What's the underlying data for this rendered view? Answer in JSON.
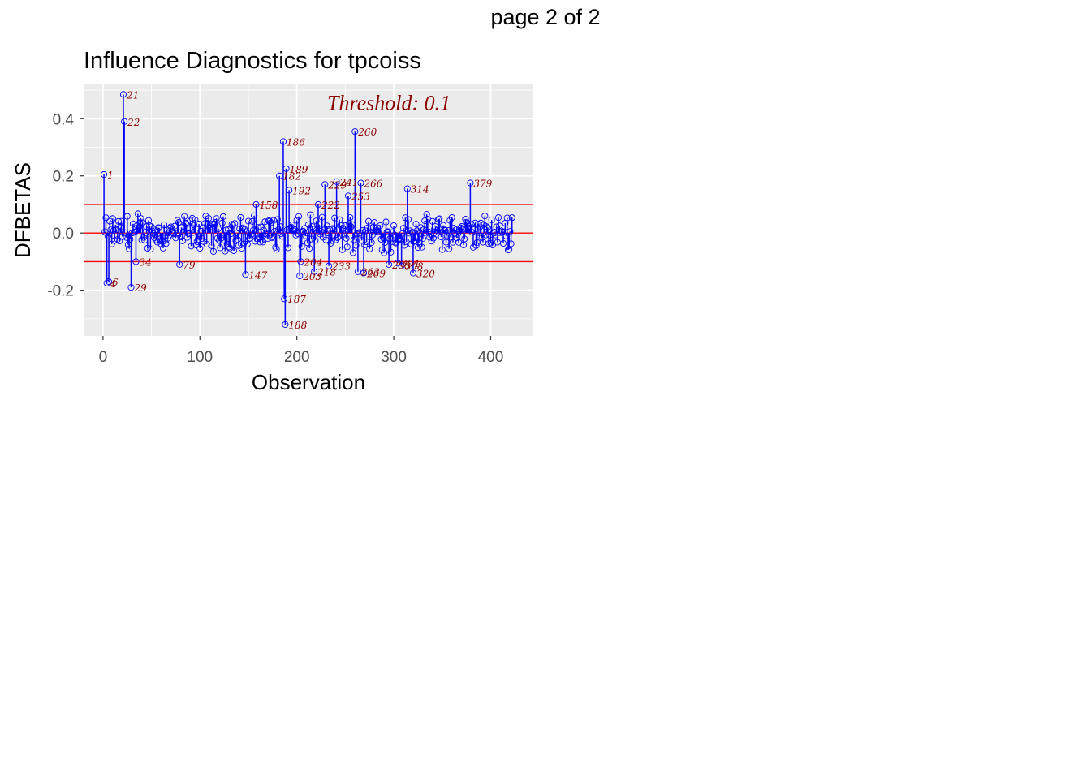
{
  "page_label": "page 2 of 2",
  "chart_data": {
    "type": "scatter",
    "title": "Influence Diagnostics for tpcoiss",
    "xlabel": "Observation",
    "ylabel": "DFBETAS",
    "xlim": [
      -20,
      444
    ],
    "ylim": [
      -0.36,
      0.52
    ],
    "x_ticks": [
      0,
      100,
      200,
      300,
      400
    ],
    "y_ticks": [
      -0.2,
      0.0,
      0.2,
      0.4
    ],
    "x_tick_labels": [
      "0",
      "100",
      "200",
      "300",
      "400"
    ],
    "y_tick_labels": [
      "-0.2",
      "0.0",
      "0.2",
      "0.4"
    ],
    "threshold": 0.1,
    "threshold_label": "Threshold: 0.1",
    "grid": true,
    "colors": {
      "panel": "#ebebeb",
      "grid": "#ffffff",
      "point": "#0000ff",
      "threshold_line": "#ff0000",
      "label": "#8b0000"
    },
    "n_observations": 422,
    "labeled_points": [
      {
        "x": 1,
        "y": 0.205,
        "label": "1"
      },
      {
        "x": 4,
        "y": -0.175,
        "label": "4"
      },
      {
        "x": 6,
        "y": -0.17,
        "label": "6"
      },
      {
        "x": 21,
        "y": 0.485,
        "label": "21"
      },
      {
        "x": 22,
        "y": 0.39,
        "label": "22"
      },
      {
        "x": 29,
        "y": -0.19,
        "label": "29"
      },
      {
        "x": 34,
        "y": -0.1,
        "label": "34"
      },
      {
        "x": 79,
        "y": -0.11,
        "label": "79"
      },
      {
        "x": 147,
        "y": -0.145,
        "label": "147"
      },
      {
        "x": 158,
        "y": 0.1,
        "label": "158"
      },
      {
        "x": 182,
        "y": 0.2,
        "label": "182"
      },
      {
        "x": 186,
        "y": 0.32,
        "label": "186"
      },
      {
        "x": 187,
        "y": -0.23,
        "label": "187"
      },
      {
        "x": 188,
        "y": -0.32,
        "label": "188"
      },
      {
        "x": 189,
        "y": 0.225,
        "label": "189"
      },
      {
        "x": 192,
        "y": 0.15,
        "label": "192"
      },
      {
        "x": 203,
        "y": -0.15,
        "label": "203"
      },
      {
        "x": 204,
        "y": -0.1,
        "label": "204"
      },
      {
        "x": 218,
        "y": -0.135,
        "label": "218"
      },
      {
        "x": 222,
        "y": 0.1,
        "label": "222"
      },
      {
        "x": 229,
        "y": 0.17,
        "label": "229"
      },
      {
        "x": 233,
        "y": -0.115,
        "label": "233"
      },
      {
        "x": 241,
        "y": 0.18,
        "label": "241"
      },
      {
        "x": 253,
        "y": 0.13,
        "label": "253"
      },
      {
        "x": 260,
        "y": 0.355,
        "label": "260"
      },
      {
        "x": 263,
        "y": -0.135,
        "label": "263"
      },
      {
        "x": 266,
        "y": 0.175,
        "label": "266"
      },
      {
        "x": 269,
        "y": -0.14,
        "label": "269"
      },
      {
        "x": 295,
        "y": -0.11,
        "label": "295"
      },
      {
        "x": 304,
        "y": -0.105,
        "label": "304"
      },
      {
        "x": 308,
        "y": -0.115,
        "label": "308"
      },
      {
        "x": 314,
        "y": 0.155,
        "label": "314"
      },
      {
        "x": 320,
        "y": -0.14,
        "label": "320"
      },
      {
        "x": 379,
        "y": 0.175,
        "label": "379"
      }
    ]
  }
}
